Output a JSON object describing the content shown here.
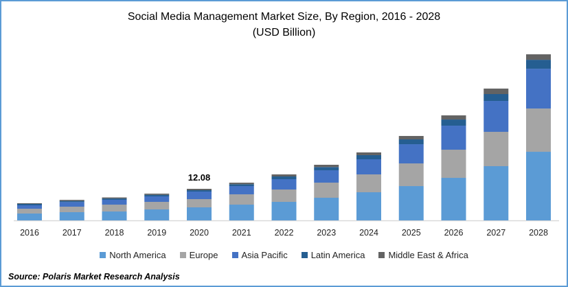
{
  "chart_data": {
    "type": "bar",
    "stacked": true,
    "title": "Social Media Management Market Size, By Region, 2016 - 2028",
    "subtitle": "(USD Billion)",
    "xlabel": "",
    "ylabel": "",
    "ylim": [
      0,
      70
    ],
    "grid": false,
    "legend_position": "bottom",
    "categories": [
      "2016",
      "2017",
      "2018",
      "2019",
      "2020",
      "2021",
      "2022",
      "2023",
      "2024",
      "2025",
      "2026",
      "2027",
      "2028"
    ],
    "series": [
      {
        "name": "North America",
        "color": "#5b9bd5",
        "values": [
          2.63,
          3.15,
          3.41,
          4.2,
          4.99,
          6.04,
          7.09,
          8.67,
          10.77,
          13.13,
          16.28,
          20.75,
          26.26
        ]
      },
      {
        "name": "Europe",
        "color": "#a5a5a5",
        "values": [
          1.84,
          2.1,
          2.63,
          2.89,
          3.15,
          3.94,
          4.73,
          5.78,
          6.83,
          8.67,
          10.77,
          13.13,
          16.54
        ]
      },
      {
        "name": "Asia Pacific",
        "color": "#4472c4",
        "values": [
          1.31,
          1.75,
          1.84,
          2.1,
          2.89,
          3.15,
          3.94,
          4.73,
          5.78,
          7.35,
          9.19,
          11.82,
          15.23
        ]
      },
      {
        "name": "Latin America",
        "color": "#255e91",
        "values": [
          0.53,
          0.45,
          0.5,
          0.6,
          0.53,
          0.7,
          1.05,
          1.23,
          1.58,
          1.84,
          2.36,
          2.63,
          3.41
        ]
      },
      {
        "name": "Middle East & Africa",
        "color": "#636363",
        "values": [
          0.26,
          0.4,
          0.4,
          0.45,
          0.52,
          0.6,
          0.79,
          0.87,
          1.05,
          1.31,
          1.58,
          2.1,
          2.1
        ]
      }
    ],
    "annotations": [
      {
        "category": "2020",
        "text": "12.08"
      }
    ]
  },
  "source": "Source: Polaris  Market Research Analysis"
}
